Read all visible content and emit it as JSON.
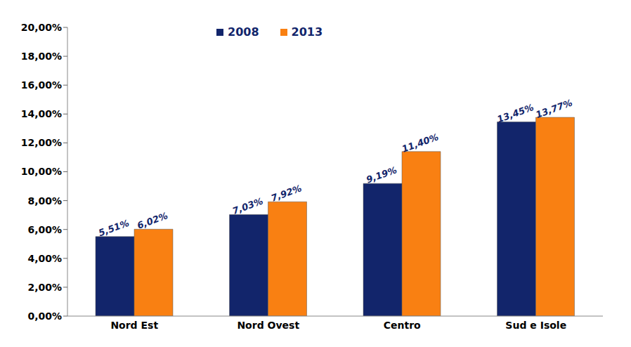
{
  "chart_data": {
    "type": "bar",
    "categories": [
      "Nord Est",
      "Nord Ovest",
      "Centro",
      "Sud e Isole"
    ],
    "series": [
      {
        "name": "2008",
        "color": "#12256b",
        "values": [
          5.51,
          7.03,
          9.19,
          13.45
        ],
        "value_labels": [
          "5,51%",
          "7,03%",
          "9,19%",
          "13,45%"
        ]
      },
      {
        "name": "2013",
        "color": "#f98012",
        "values": [
          6.02,
          7.92,
          11.4,
          13.77
        ],
        "value_labels": [
          "6,02%",
          "7,92%",
          "11,40%",
          "13,77%"
        ]
      }
    ],
    "ylim": [
      0,
      20
    ],
    "yticks": [
      {
        "value": 0,
        "label": "0,00%"
      },
      {
        "value": 2,
        "label": "2,00%"
      },
      {
        "value": 4,
        "label": "4,00%"
      },
      {
        "value": 6,
        "label": "6,00%"
      },
      {
        "value": 8,
        "label": "8,00%"
      },
      {
        "value": 10,
        "label": "10,00%"
      },
      {
        "value": 12,
        "label": "12,00%"
      },
      {
        "value": 14,
        "label": "14,00%"
      },
      {
        "value": 16,
        "label": "16,00%"
      },
      {
        "value": 18,
        "label": "18,00%"
      },
      {
        "value": 20,
        "label": "20,00%"
      }
    ],
    "grid": false,
    "legend": "top",
    "data_labels": true
  }
}
